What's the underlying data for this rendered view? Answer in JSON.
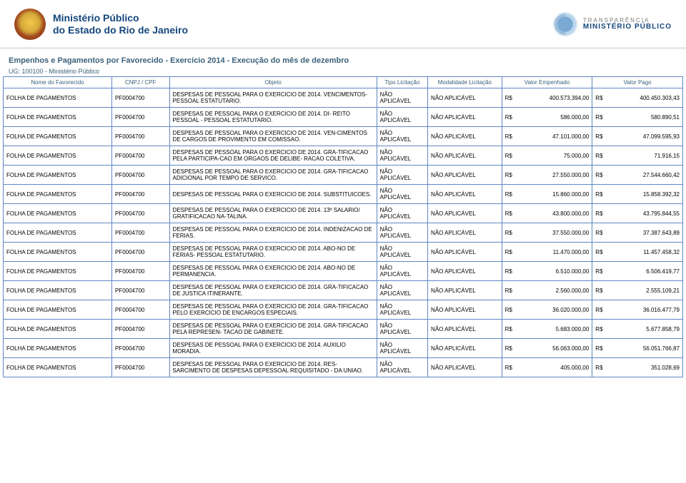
{
  "header": {
    "org_line1": "Ministério Público",
    "org_line2": "do Estado do Rio de Janeiro",
    "transparencia_line1": "TRANSPARÊNCIA",
    "transparencia_line2": "MINISTÉRIO PÚBLICO"
  },
  "page_title": "Empenhos e Pagamentos por Favorecido - Exercício 2014 - Execução do mês de dezembro",
  "ug_line": "UG: 100100 - Ministério Público",
  "columns": {
    "favorecido": "Nome do Favorecido",
    "cnpj": "CNPJ / CPF",
    "objeto": "Objeto",
    "tipo": "Tipo Licitação",
    "modalidade": "Modalidade Licitação",
    "empenhado": "Valor Empenhado",
    "pago": "Valor Pago"
  },
  "currency": "R$",
  "rows": [
    {
      "favorecido": "FOLHA DE PAGAMENTOS",
      "cnpj": "PF0004700",
      "objeto": "DESPESAS DE PESSOAL PARA O EXERCICIO DE 2014. VENCIMENTOS-PESSOAL ESTATUTARIO.",
      "tipo": "NÃO APLICÁVEL",
      "modalidade": "NÃO APLICÁVEL",
      "empenhado": "400.573.394,00",
      "pago": "400.450.303,43"
    },
    {
      "favorecido": "FOLHA DE PAGAMENTOS",
      "cnpj": "PF0004700",
      "objeto": "DESPESAS DE PESSOAL PARA O EXERCICIO DE 2014. DI- REITO PESSOAL - PESSOAL ESTATUTARIO.",
      "tipo": "NÃO APLICÁVEL",
      "modalidade": "NÃO APLICÁVEL",
      "empenhado": "586.000,00",
      "pago": "580.890,51"
    },
    {
      "favorecido": "FOLHA DE PAGAMENTOS",
      "cnpj": "PF0004700",
      "objeto": "DESPESAS DE PESSOAL PARA O EXERCICIO DE 2014. VEN-CIMENTOS DE CARGOS DE PROVIMENTO EM COMISSAO.",
      "tipo": "NÃO APLICÁVEL",
      "modalidade": "NÃO APLICÁVEL",
      "empenhado": "47.101.000,00",
      "pago": "47.099.595,93"
    },
    {
      "favorecido": "FOLHA DE PAGAMENTOS",
      "cnpj": "PF0004700",
      "objeto": "DESPESAS DE PESSOAL PARA O EXERCICIO DE 2014. GRA-TIFICACAO PELA PARTICIPA-CAO EM ORGAOS DE DELIBE- RACAO COLETIVA.",
      "tipo": "NÃO APLICÁVEL",
      "modalidade": "NÃO APLICÁVEL",
      "empenhado": "75.000,00",
      "pago": "71.916,15"
    },
    {
      "favorecido": "FOLHA DE PAGAMENTOS",
      "cnpj": "PF0004700",
      "objeto": "DESPESAS DE PESSOAL PARA O EXERCICIO DE 2014. GRA-TIFICACAO ADICIONAL POR TEMPO DE SERVICO.",
      "tipo": "NÃO APLICÁVEL",
      "modalidade": "NÃO APLICÁVEL",
      "empenhado": "27.550.000,00",
      "pago": "27.544.660,42"
    },
    {
      "favorecido": "FOLHA DE PAGAMENTOS",
      "cnpj": "PF0004700",
      "objeto": "DESPESAS DE PESSOAL PARA O EXERCICIO DE 2014. SUBSTITUICOES.",
      "tipo": "NÃO APLICÁVEL",
      "modalidade": "NÃO APLICÁVEL",
      "empenhado": "15.860.000,00",
      "pago": "15.858.392,32"
    },
    {
      "favorecido": "FOLHA DE PAGAMENTOS",
      "cnpj": "PF0004700",
      "objeto": "DESPESAS DE PESSOAL PARA O EXERCICIO DE 2014. 13º SALARIO/ GRATIFICACAO NA-TALINA.",
      "tipo": "NÃO APLICÁVEL",
      "modalidade": "NÃO APLICÁVEL",
      "empenhado": "43.800.000,00",
      "pago": "43.795.844,55"
    },
    {
      "favorecido": "FOLHA DE PAGAMENTOS",
      "cnpj": "PF0004700",
      "objeto": "DESPESAS DE PESSOAL PARA O EXERCICIO DE 2014. INDENIZACAO DE FERIAS.",
      "tipo": "NÃO APLICÁVEL",
      "modalidade": "NÃO APLICÁVEL",
      "empenhado": "37.550.000,00",
      "pago": "37.387.643,89"
    },
    {
      "favorecido": "FOLHA DE PAGAMENTOS",
      "cnpj": "PF0004700",
      "objeto": "DESPESAS DE PESSOAL PARA O EXERCICIO DE 2014. ABO-NO DE FERIAS- PESSOAL ESTATUTARIO.",
      "tipo": "NÃO APLICÁVEL",
      "modalidade": "NÃO APLICÁVEL",
      "empenhado": "11.470.000,00",
      "pago": "11.457.458,32"
    },
    {
      "favorecido": "FOLHA DE PAGAMENTOS",
      "cnpj": "PF0004700",
      "objeto": "DESPESAS DE PESSOAL PARA O EXERCICIO DE 2014. ABO-NO DE PERMANENCIA.",
      "tipo": "NÃO APLICÁVEL",
      "modalidade": "NÃO APLICÁVEL",
      "empenhado": "6.510.000,00",
      "pago": "6.506.419,77"
    },
    {
      "favorecido": "FOLHA DE PAGAMENTOS",
      "cnpj": "PF0004700",
      "objeto": "DESPESAS DE PESSOAL PARA O EXERCICIO DE 2014. GRA-TIFICACAO DE JUSTICA ITINERANTE.",
      "tipo": "NÃO APLICÁVEL",
      "modalidade": "NÃO APLICÁVEL",
      "empenhado": "2.560.000,00",
      "pago": "2.555.109,21"
    },
    {
      "favorecido": "FOLHA DE PAGAMENTOS",
      "cnpj": "PF0004700",
      "objeto": "DESPESAS DE PESSOAL PARA O EXERCICIO DE 2014. GRA-TIFICACAO PELO EXERCICIO DE ENCARGOS ESPECIAIS.",
      "tipo": "NÃO APLICÁVEL",
      "modalidade": "NÃO APLICÁVEL",
      "empenhado": "36.020.000,00",
      "pago": "36.016.477,79"
    },
    {
      "favorecido": "FOLHA DE PAGAMENTOS",
      "cnpj": "PF0004700",
      "objeto": "DESPESAS DE PESSOAL PARA O EXERCICIO DE 2014. GRA-TIFICACAO PELA REPRESEN- TACAO DE GABINETE.",
      "tipo": "NÃO APLICÁVEL",
      "modalidade": "NÃO APLICÁVEL",
      "empenhado": "5.683.000,00",
      "pago": "5.677.858,79"
    },
    {
      "favorecido": "FOLHA DE PAGAMENTOS",
      "cnpj": "PF0004700",
      "objeto": "DESPESAS DE PESSOAL PARA O EXERCICIO DE 2014. AUXILIO MORADIA.",
      "tipo": "NÃO APLICÁVEL",
      "modalidade": "NÃO APLICÁVEL",
      "empenhado": "56.063.000,00",
      "pago": "56.051.766,87"
    },
    {
      "favorecido": "FOLHA DE PAGAMENTOS",
      "cnpj": "PF0004700",
      "objeto": "DESPESAS DE PESSOAL PARA O EXERCICIO DE 2014. RES-SARCIMENTO DE DESPESAS DEPESSOAL REQUISITADO - DA UNIAO.",
      "tipo": "NÃO APLICÁVEL",
      "modalidade": "NÃO APLICÁVEL",
      "empenhado": "405.000,00",
      "pago": "351.028,69"
    }
  ],
  "colors": {
    "border": "#5f86c4",
    "heading": "#3a607a",
    "org": "#14477d",
    "divider": "#e8e8e8"
  }
}
